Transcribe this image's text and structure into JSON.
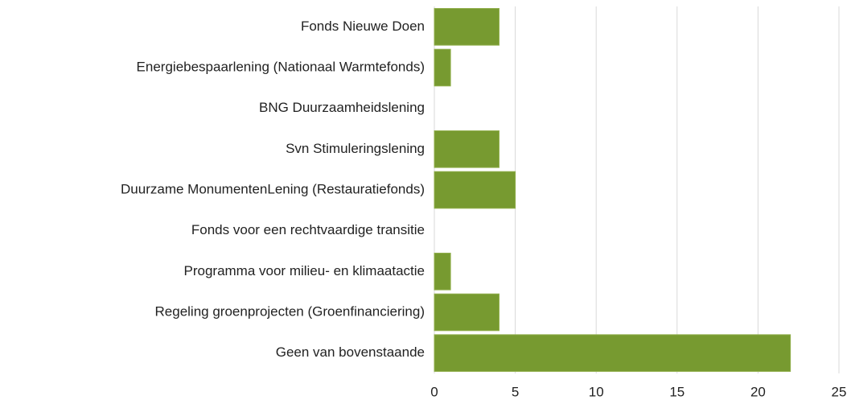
{
  "chart_data": {
    "type": "hbar",
    "categories": [
      "Fonds Nieuwe Doen",
      "Energiebespaarlening (Nationaal Warmtefonds)",
      "BNG Duurzaamheidslening",
      "Svn Stimuleringslening",
      "Duurzame MonumentenLening (Restauratiefonds)",
      "Fonds voor een rechtvaardige transitie",
      "Programma voor milieu- en klimaatactie",
      "Regeling groenprojecten (Groenfinanciering)",
      "Geen van bovenstaande"
    ],
    "values": [
      4,
      1,
      0,
      4,
      5,
      0,
      1,
      4,
      22
    ],
    "color": "#779a30",
    "xlim": [
      0,
      25
    ],
    "xticks": [
      0,
      5,
      10,
      15,
      20,
      25
    ],
    "grid": true
  }
}
